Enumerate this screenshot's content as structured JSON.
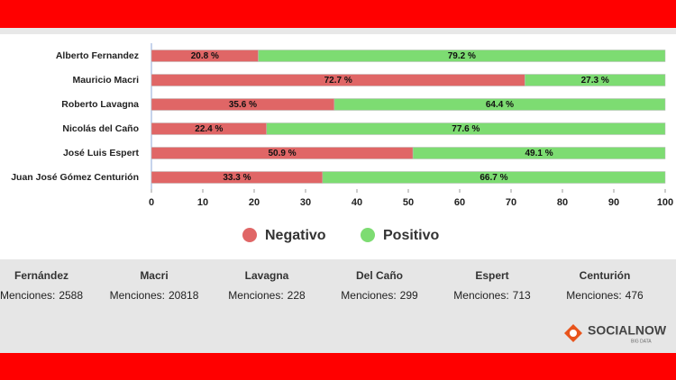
{
  "chart_data": {
    "type": "stacked_barh",
    "categories": [
      "Alberto Fernandez",
      "Mauricio Macri",
      "Roberto Lavagna",
      "Nicolás del Caño",
      "José Luis Espert",
      "Juan José Gómez Centurión"
    ],
    "series": [
      {
        "name": "Negativo",
        "color": "#e06666",
        "values": [
          20.8,
          72.7,
          35.6,
          22.4,
          50.9,
          33.3
        ],
        "value_labels": [
          "20.8 %",
          "72.7 %",
          "35.6 %",
          "22.4 %",
          "50.9 %",
          "33.3 %"
        ]
      },
      {
        "name": "Positivo",
        "color": "#7ddc72",
        "values": [
          79.2,
          27.3,
          64.4,
          77.6,
          49.1,
          66.7
        ],
        "value_labels": [
          "79.2 %",
          "27.3 %",
          "64.4 %",
          "77.6 %",
          "49.1 %",
          "66.7 %"
        ]
      }
    ],
    "xlim": [
      0,
      100
    ],
    "xticks": [
      0,
      10,
      20,
      30,
      40,
      50,
      60,
      70,
      80,
      90,
      100
    ]
  },
  "stats": [
    {
      "name": "Fernández",
      "label": "Menciones:",
      "count": 2588
    },
    {
      "name": "Macri",
      "label": "Menciones:",
      "count": 20818
    },
    {
      "name": "Lavagna",
      "label": "Menciones:",
      "count": 228
    },
    {
      "name": "Del Caño",
      "label": "Menciones:",
      "count": 299
    },
    {
      "name": "Espert",
      "label": "Menciones:",
      "count": 713
    },
    {
      "name": "Centurión",
      "label": "Menciones:",
      "count": 476
    }
  ],
  "logo": {
    "name": "SOCIALNOW",
    "tagline": "BIG DATA"
  }
}
